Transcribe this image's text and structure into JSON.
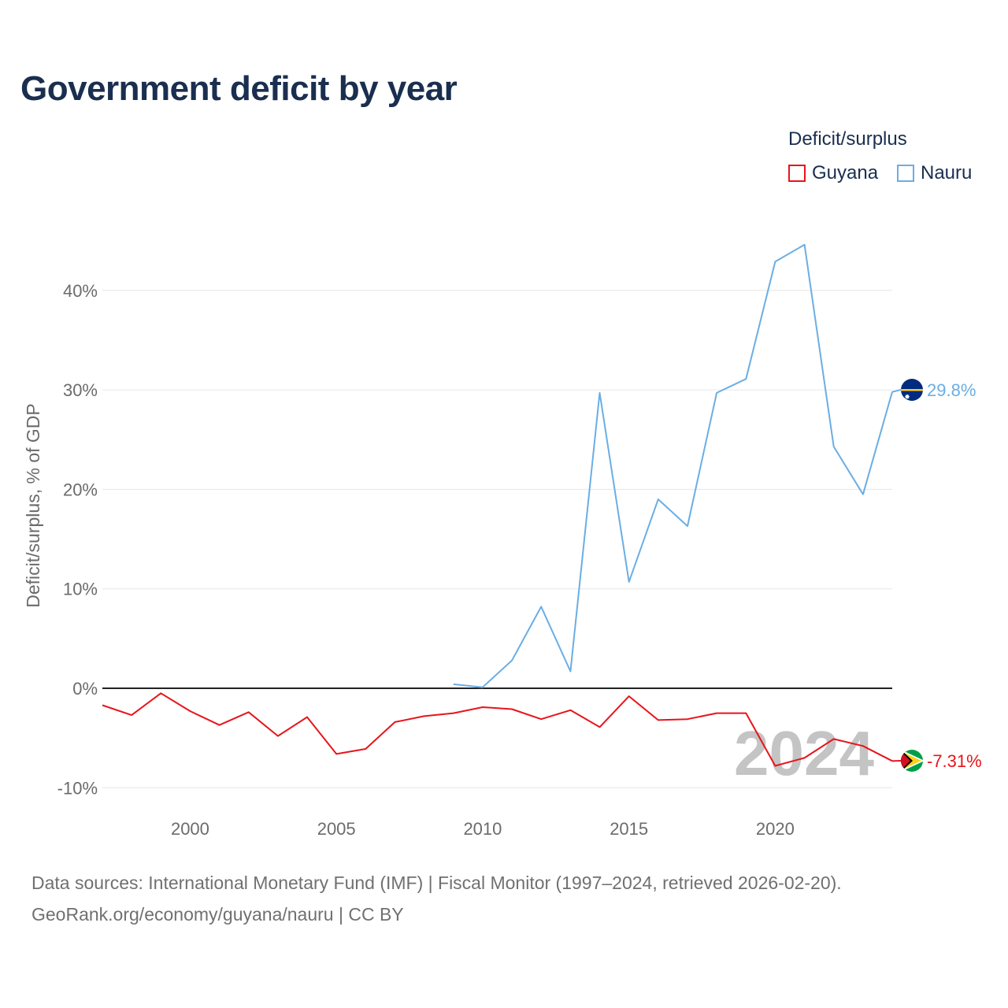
{
  "chart_data": {
    "type": "line",
    "title": "Government deficit by year",
    "xlabel": "",
    "ylabel": "Deficit/surplus, % of GDP",
    "xlim": [
      1997,
      2024
    ],
    "ylim": [
      -11,
      50
    ],
    "x_ticks": [
      2000,
      2005,
      2010,
      2015,
      2020
    ],
    "y_ticks": [
      -10,
      0,
      10,
      20,
      30,
      40
    ],
    "y_tick_labels": [
      "-10%",
      "0%",
      "10%",
      "20%",
      "30%",
      "40%"
    ],
    "grid": true,
    "legend_title": "Deficit/surplus",
    "legend_position": "top-right",
    "year_watermark": "2024",
    "series": [
      {
        "name": "Guyana",
        "color": "#e8141b",
        "end_label": "-7.31%",
        "x": [
          1997,
          1998,
          1999,
          2000,
          2001,
          2002,
          2003,
          2004,
          2005,
          2006,
          2007,
          2008,
          2009,
          2010,
          2011,
          2012,
          2013,
          2014,
          2015,
          2016,
          2017,
          2018,
          2019,
          2020,
          2021,
          2022,
          2023,
          2024
        ],
        "values": [
          -1.7,
          -2.7,
          -0.5,
          -2.3,
          -3.7,
          -2.4,
          -4.8,
          -2.9,
          -6.6,
          -6.1,
          -3.4,
          -2.8,
          -2.5,
          -1.9,
          -2.1,
          -3.1,
          -2.2,
          -3.9,
          -0.8,
          -3.2,
          -3.1,
          -2.5,
          -2.5,
          -7.8,
          -7.0,
          -5.1,
          -5.8,
          -7.31
        ]
      },
      {
        "name": "Nauru",
        "color": "#6aaee4",
        "end_label": "29.8%",
        "x": [
          2009,
          2010,
          2011,
          2012,
          2013,
          2014,
          2015,
          2016,
          2017,
          2018,
          2019,
          2020,
          2021,
          2022,
          2023,
          2024
        ],
        "values": [
          0.4,
          0.1,
          2.8,
          8.2,
          1.7,
          29.7,
          10.7,
          19.0,
          16.3,
          29.7,
          31.1,
          42.9,
          44.6,
          24.3,
          19.5,
          29.8
        ]
      }
    ]
  },
  "footer": {
    "source": "Data sources: International Monetary Fund (IMF) | Fiscal Monitor (1997–2024, retrieved 2026-02-20).",
    "credit": "GeoRank.org/economy/guyana/nauru | CC BY"
  }
}
